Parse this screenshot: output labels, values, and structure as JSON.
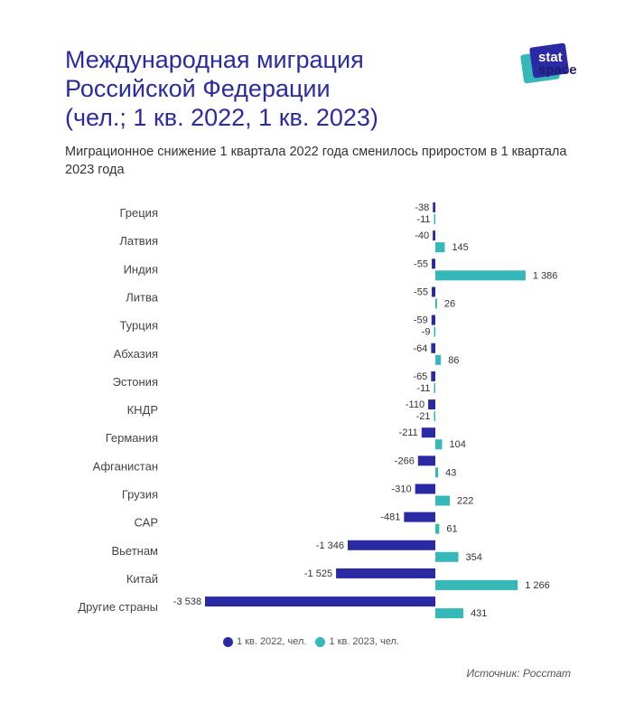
{
  "header": {
    "title_lines": [
      "Международная миграция",
      "Российской Федерации",
      "(чел.; 1 кв. 2022, 1 кв. 2023)"
    ],
    "subtitle": "Миграционное снижение 1 квартала 2022 года сменилось приростом в 1 квартала 2023 года"
  },
  "logo": {
    "text": [
      "stat",
      "space"
    ]
  },
  "source": "Источник: Росстат",
  "chart_data": {
    "type": "bar",
    "orientation": "horizontal",
    "categories": [
      "Греция",
      "Латвия",
      "Индия",
      "Литва",
      "Турция",
      "Абхазия",
      "Эстония",
      "КНДР",
      "Германия",
      "Афганистан",
      "Грузия",
      "САР",
      "Вьетнам",
      "Китай",
      "Другие страны"
    ],
    "series": [
      {
        "name": "1 кв. 2022, чел.",
        "color": "#2b2aa5",
        "values": [
          -38,
          -40,
          -55,
          -55,
          -59,
          -64,
          -65,
          -110,
          -211,
          -266,
          -310,
          -481,
          -1346,
          -1525,
          -3538
        ],
        "labels": [
          "-38",
          "-40",
          "-55",
          "-55",
          "-59",
          "-64",
          "-65",
          "-110",
          "-211",
          "-266",
          "-310",
          "-481",
          "-1 346",
          "-1 525",
          "-3 538"
        ]
      },
      {
        "name": "1 кв. 2023, чел.",
        "color": "#36b8b8",
        "values": [
          -11,
          145,
          1386,
          26,
          -9,
          86,
          -11,
          -21,
          104,
          43,
          222,
          61,
          354,
          1266,
          431
        ],
        "labels": [
          "-11",
          "145",
          "1 386",
          "26",
          "-9",
          "86",
          "-11",
          "-21",
          "104",
          "43",
          "222",
          "61",
          "354",
          "1 266",
          "431"
        ]
      }
    ],
    "legend_position": "bottom",
    "grid": false
  }
}
